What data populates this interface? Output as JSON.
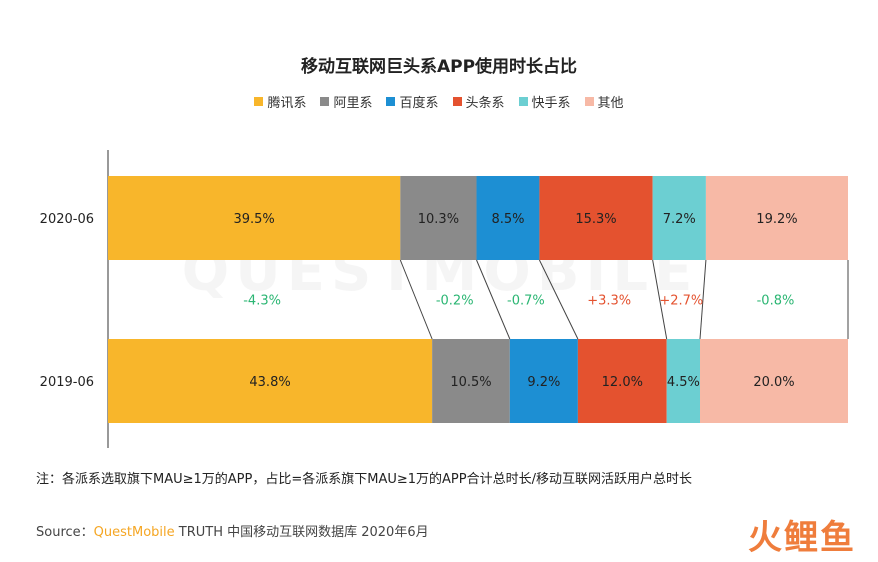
{
  "chart_data": {
    "type": "bar",
    "title": "移动互联网巨头系APP使用时长占比",
    "stacked": true,
    "orientation": "horizontal",
    "normalized_percent": true,
    "categories": [
      "2020-06",
      "2019-06"
    ],
    "series": [
      {
        "name": "腾讯系",
        "color": "#f8b62b",
        "values": [
          39.5,
          43.8
        ],
        "labels": [
          "39.5%",
          "43.8%"
        ],
        "change": "-4.3%"
      },
      {
        "name": "阿里系",
        "color": "#8a8a8a",
        "values": [
          10.3,
          10.5
        ],
        "labels": [
          "10.3%",
          "10.5%"
        ],
        "change": "-0.2%"
      },
      {
        "name": "百度系",
        "color": "#1d8fd3",
        "values": [
          8.5,
          9.2
        ],
        "labels": [
          "8.5%",
          "9.2%"
        ],
        "change": "-0.7%"
      },
      {
        "name": "头条系",
        "color": "#e4522f",
        "values": [
          15.3,
          12.0
        ],
        "labels": [
          "15.3%",
          "12.0%"
        ],
        "change": "+3.3%"
      },
      {
        "name": "快手系",
        "color": "#6ccfd2",
        "values": [
          7.2,
          4.5
        ],
        "labels": [
          "7.2%",
          "4.5%"
        ],
        "change": "+2.7%"
      },
      {
        "name": "其他",
        "color": "#f7b9a6",
        "values": [
          19.2,
          20.0
        ],
        "labels": [
          "19.2%",
          "20.0%"
        ],
        "change": "-0.8%"
      }
    ],
    "change_colors": {
      "negative": "#2bb673",
      "positive": "#e4522f"
    },
    "legend_position": "top",
    "grid": false
  },
  "note": "注：各派系选取旗下MAU≥1万的APP，占比=各派系旗下MAU≥1万的APP合计总时长/移动互联网活跃用户总时长",
  "source": {
    "prefix": "Source：",
    "brand": "QuestMobile",
    "suffix": " TRUTH 中国移动互联网数据库 2020年6月"
  },
  "logo_text": "火鲤鱼",
  "watermark_text": "QUESTMOBILE"
}
